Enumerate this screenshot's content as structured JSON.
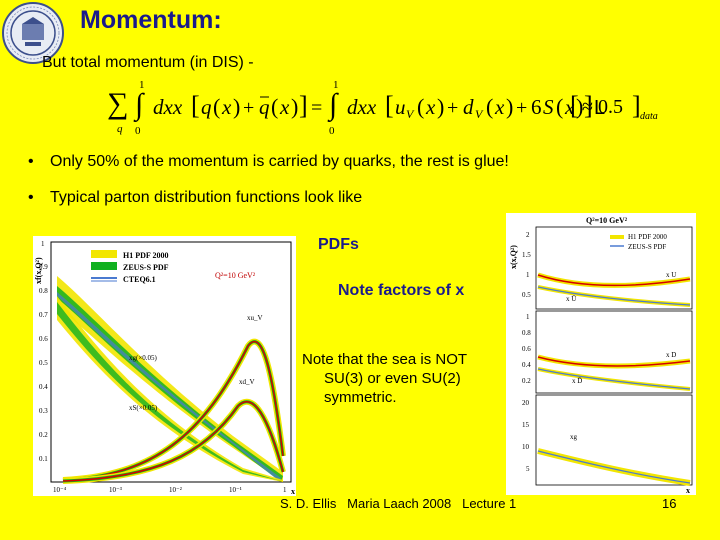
{
  "slide": {
    "title": "Momentum:",
    "intro": "But total momentum (in DIS) -",
    "bullets": [
      "Only 50% of the momentum is carried by quarks, the rest is glue!",
      "Typical parton distribution functions look like"
    ],
    "notes": {
      "pdfs": "PDFs",
      "factors": "Note factors of x",
      "sea": [
        "Note that the sea is NOT",
        "SU(3) or even SU(2)",
        "symmetric."
      ]
    },
    "footer": "S. D. Ellis   Maria Laach 2008   Lecture 1",
    "page_number": "16"
  },
  "equation": {
    "lower_limit": "0",
    "upper_limit": "1",
    "sum_index": "q",
    "approx": "≈ 0.5",
    "data_subscript": "data"
  },
  "left_figure": {
    "ylabel": "xf(x,Q²)",
    "legend": [
      "H1 PDF 2000",
      "ZEUS-S PDF",
      "CTEQ6.1"
    ],
    "q2_label": "Q²=10 GeV²",
    "curve_labels": [
      "xu_V",
      "xd_V",
      "xg(×0.05)",
      "xS(×0.05)"
    ],
    "xlabel": "x",
    "y_ticks": [
      "1",
      "0.9",
      "0.8",
      "0.7",
      "0.6",
      "0.5",
      "0.4",
      "0.3",
      "0.2",
      "0.1"
    ],
    "x_ticks": [
      "10⁻⁴",
      "10⁻³",
      "10⁻²",
      "10⁻¹",
      "1"
    ]
  },
  "right_figure": {
    "ylabel": "x(x,Q²)",
    "title": "Q²=10 GeV²",
    "legend": [
      "H1 PDF 2000",
      "ZEUS-S PDF"
    ],
    "panel_labels": [
      "x U",
      "x Ū",
      "x D",
      "x D̄",
      "xg"
    ],
    "xlabel": "x",
    "panel1_ticks": [
      "2",
      "1.5",
      "1",
      "0.5"
    ],
    "panel2_ticks": [
      "1",
      "0.8",
      "0.6",
      "0.4",
      "0.2"
    ],
    "panel3_ticks": [
      "20",
      "15",
      "10",
      "5"
    ]
  },
  "colors": {
    "background": "#ffff00",
    "title": "#1a1a8c",
    "curve_red": "#d40000",
    "band_yellow": "#f2e600",
    "band_green": "#10b020",
    "band_blue": "#4a7ad0"
  }
}
